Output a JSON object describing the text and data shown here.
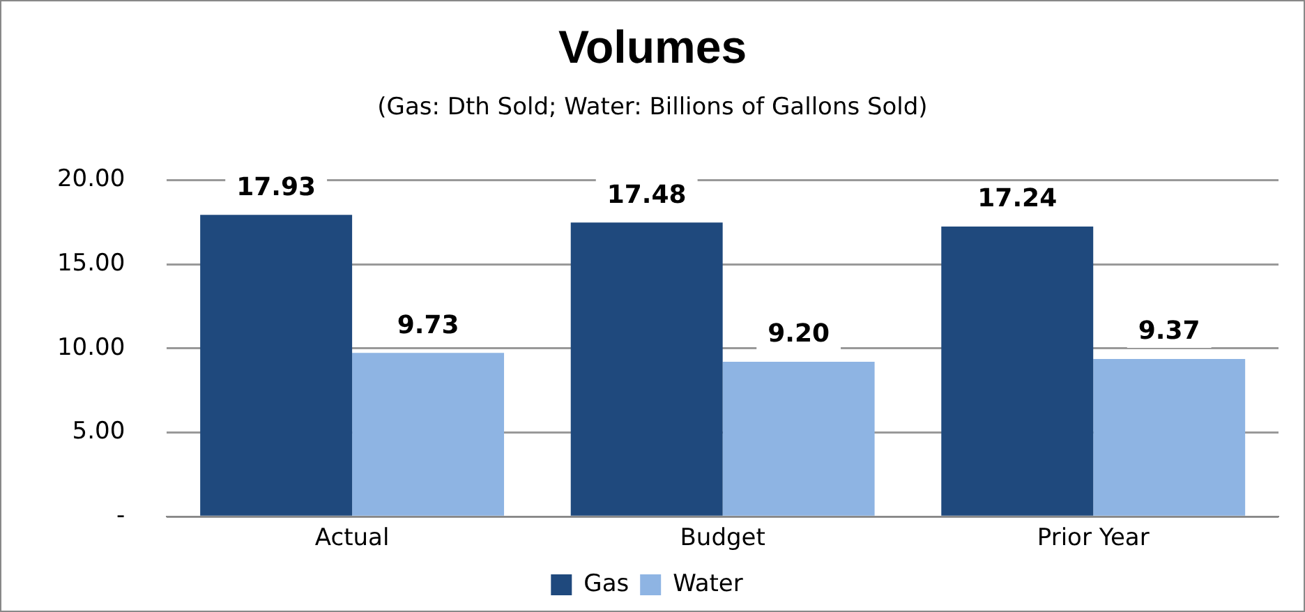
{
  "chart_data": {
    "type": "bar",
    "title": "Volumes",
    "subtitle": "(Gas: Dth Sold; Water: Billions of Gallons Sold)",
    "categories": [
      "Actual",
      "Budget",
      "Prior Year"
    ],
    "series": [
      {
        "name": "Gas",
        "color": "#1f497d",
        "values": [
          17.93,
          17.48,
          17.24
        ],
        "value_labels": [
          "17.93",
          "17.48",
          "17.24"
        ]
      },
      {
        "name": "Water",
        "color": "#8eb4e3",
        "values": [
          9.73,
          9.2,
          9.37
        ],
        "value_labels": [
          "9.73",
          "9.20",
          "9.37"
        ]
      }
    ],
    "ylim": [
      0,
      20
    ],
    "yticks": [
      {
        "value": 0,
        "label": "-"
      },
      {
        "value": 5,
        "label": "5.00"
      },
      {
        "value": 10,
        "label": "10.00"
      },
      {
        "value": 15,
        "label": "15.00"
      },
      {
        "value": 20,
        "label": "20.00"
      }
    ],
    "grid": "y",
    "legend": "bottom"
  }
}
